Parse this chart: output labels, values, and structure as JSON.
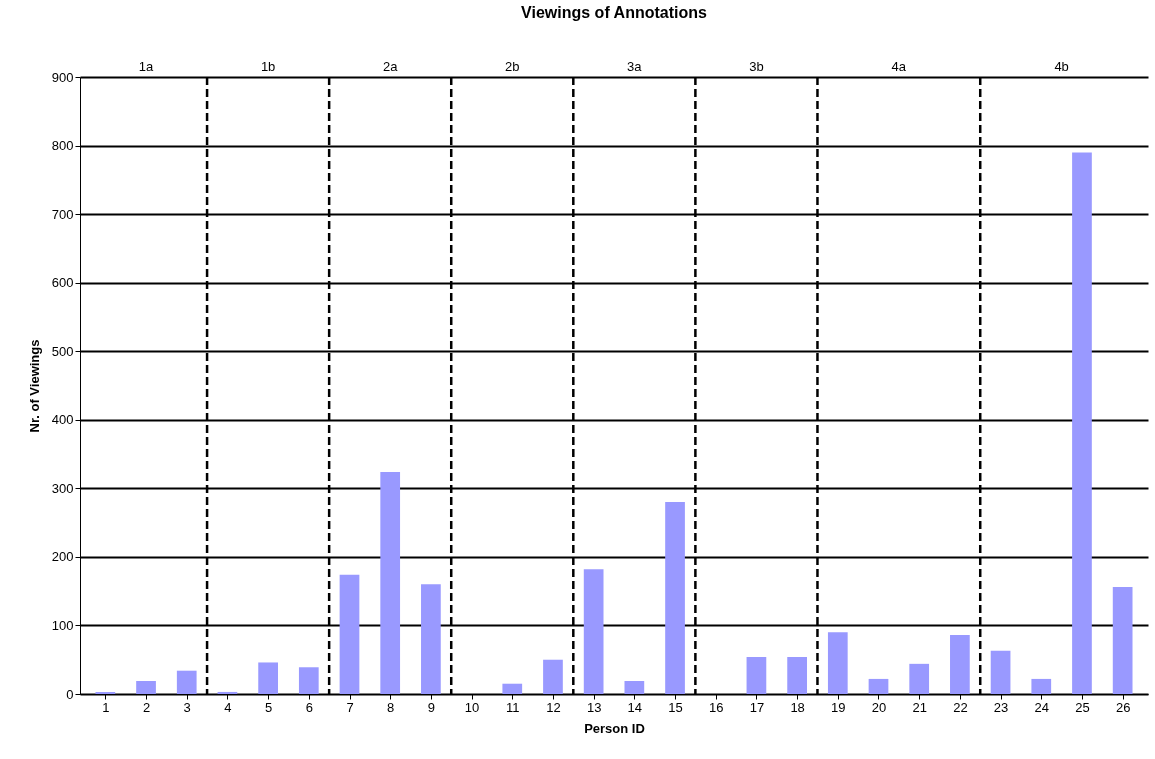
{
  "chart_data": {
    "type": "bar",
    "title": "Viewings of Annotations",
    "xlabel": "Person ID",
    "ylabel": "Nr. of Viewings",
    "x": [
      1,
      2,
      3,
      4,
      5,
      6,
      7,
      8,
      9,
      10,
      11,
      12,
      13,
      14,
      15,
      16,
      17,
      18,
      19,
      20,
      21,
      22,
      23,
      24,
      25,
      26
    ],
    "values": [
      3,
      19,
      34,
      3,
      46,
      39,
      174,
      324,
      160,
      0,
      15,
      50,
      182,
      19,
      280,
      0,
      54,
      54,
      90,
      22,
      44,
      86,
      63,
      22,
      790,
      156
    ],
    "color": "#9999ff",
    "xlim": [
      0.5,
      26.5
    ],
    "xticks": [
      1,
      2,
      3,
      4,
      5,
      6,
      7,
      8,
      9,
      10,
      11,
      12,
      13,
      14,
      15,
      16,
      17,
      18,
      19,
      20,
      21,
      22,
      23,
      24,
      25,
      26
    ],
    "ylim": [
      0,
      900
    ],
    "yticks": [
      0,
      100,
      200,
      300,
      400,
      500,
      600,
      700,
      800,
      900
    ],
    "grid": "y",
    "ref_lines": [
      {
        "axis": "x",
        "value": 3.5,
        "line_style": "dashed"
      },
      {
        "axis": "x",
        "value": 6.5,
        "line_style": "dashed"
      },
      {
        "axis": "x",
        "value": 9.5,
        "line_style": "dashed"
      },
      {
        "axis": "x",
        "value": 12.5,
        "line_style": "dashed"
      },
      {
        "axis": "x",
        "value": 15.5,
        "line_style": "dashed"
      },
      {
        "axis": "x",
        "value": 18.5,
        "line_style": "dashed"
      },
      {
        "axis": "x",
        "value": 22.5,
        "line_style": "dashed"
      }
    ],
    "annotations": [
      "1a",
      "1b",
      "2a",
      "2b",
      "3a",
      "3b",
      "4a",
      "4b"
    ]
  }
}
